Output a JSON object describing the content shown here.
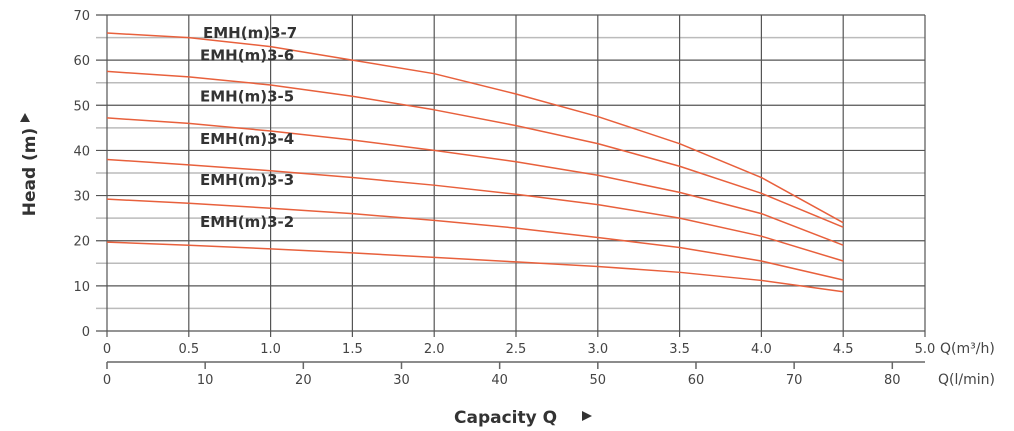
{
  "chart_data": {
    "type": "line",
    "title": "",
    "xlabel": "Capacity Q",
    "ylabel": "Head (m)",
    "x_unit": "Q(m³/h)",
    "x2_unit": "Q(l/min)",
    "xlim": [
      0,
      5.0
    ],
    "ylim": [
      0,
      70
    ],
    "x2lim": [
      0,
      83.33
    ],
    "x_ticks": [
      "0",
      "0.5",
      "1.0",
      "1.5",
      "2.0",
      "2.5",
      "3.0",
      "3.5",
      "4.0",
      "4.5",
      "5.0"
    ],
    "x2_ticks": [
      "0",
      "10",
      "20",
      "30",
      "40",
      "50",
      "60",
      "70",
      "80"
    ],
    "y_ticks": [
      "0",
      "10",
      "20",
      "30",
      "40",
      "50",
      "60",
      "70"
    ],
    "grid": true,
    "line_color": "#e8603c",
    "x": [
      0,
      0.5,
      1.0,
      1.5,
      2.0,
      2.5,
      3.0,
      3.5,
      4.0,
      4.5
    ],
    "series": [
      {
        "name": "EMH(m)3-7",
        "values": [
          66,
          65,
          63,
          60,
          57,
          52.5,
          47.5,
          41.5,
          34,
          24
        ]
      },
      {
        "name": "EMH(m)3-6",
        "values": [
          57.5,
          56.3,
          54.5,
          52,
          49,
          45.5,
          41.5,
          36.5,
          30.5,
          23
        ]
      },
      {
        "name": "EMH(m)3-5",
        "values": [
          47.2,
          46,
          44.3,
          42.3,
          40,
          37.5,
          34.5,
          30.7,
          26,
          19
        ]
      },
      {
        "name": "EMH(m)3-4",
        "values": [
          38,
          36.8,
          35.5,
          34,
          32.3,
          30.3,
          28,
          25,
          21,
          15.5
        ]
      },
      {
        "name": "EMH(m)3-3",
        "values": [
          29.2,
          28.3,
          27.2,
          26,
          24.5,
          22.8,
          20.7,
          18.5,
          15.5,
          11.3
        ]
      },
      {
        "name": "EMH(m)3-2",
        "values": [
          19.7,
          19,
          18.2,
          17.3,
          16.3,
          15.3,
          14.3,
          13,
          11.2,
          8.7
        ]
      }
    ],
    "series_label_y": [
      66,
      61,
      52,
      42.5,
      33.5,
      24.2
    ]
  }
}
